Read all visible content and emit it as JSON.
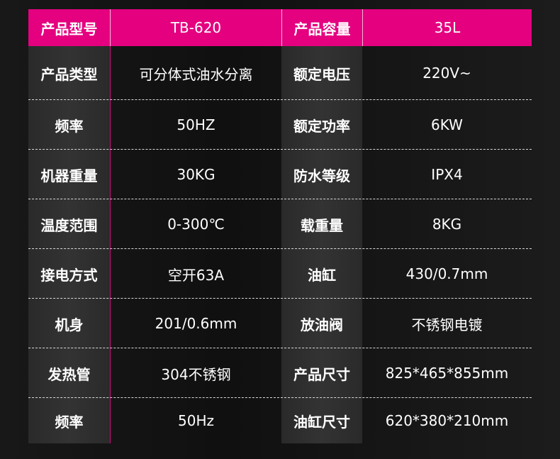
{
  "header": {
    "label1": "产品型号",
    "value1": "TB-620",
    "label2": "产品容量",
    "value2": "35L"
  },
  "rows": [
    {
      "l1": "产品类型",
      "v1": "可分体式油水分离",
      "l2": "额定电压",
      "v2": "220V~"
    },
    {
      "l1": "频率",
      "v1": "50HZ",
      "l2": "额定功率",
      "v2": "6KW"
    },
    {
      "l1": "机器重量",
      "v1": "30KG",
      "l2": "防水等级",
      "v2": "IPX4"
    },
    {
      "l1": "温度范围",
      "v1": "0-300℃",
      "l2": "载重量",
      "v2": "8KG"
    },
    {
      "l1": "接电方式",
      "v1": "空开63A",
      "l2": "油缸",
      "v2": "430/0.7mm"
    },
    {
      "l1": "机身",
      "v1": "201/0.6mm",
      "l2": "放油阀",
      "v2": "不锈钢电镀"
    },
    {
      "l1": "发热管",
      "v1": "304不锈钢",
      "l2": "产品尺寸",
      "v2": "825*465*855mm"
    },
    {
      "l1": "频率",
      "v1": "50Hz",
      "l2": "油缸尺寸",
      "v2": "620*380*210mm"
    }
  ],
  "colors": {
    "accent": "#e4007f",
    "label_bg": "#2e2e2e",
    "background": "#151515"
  }
}
